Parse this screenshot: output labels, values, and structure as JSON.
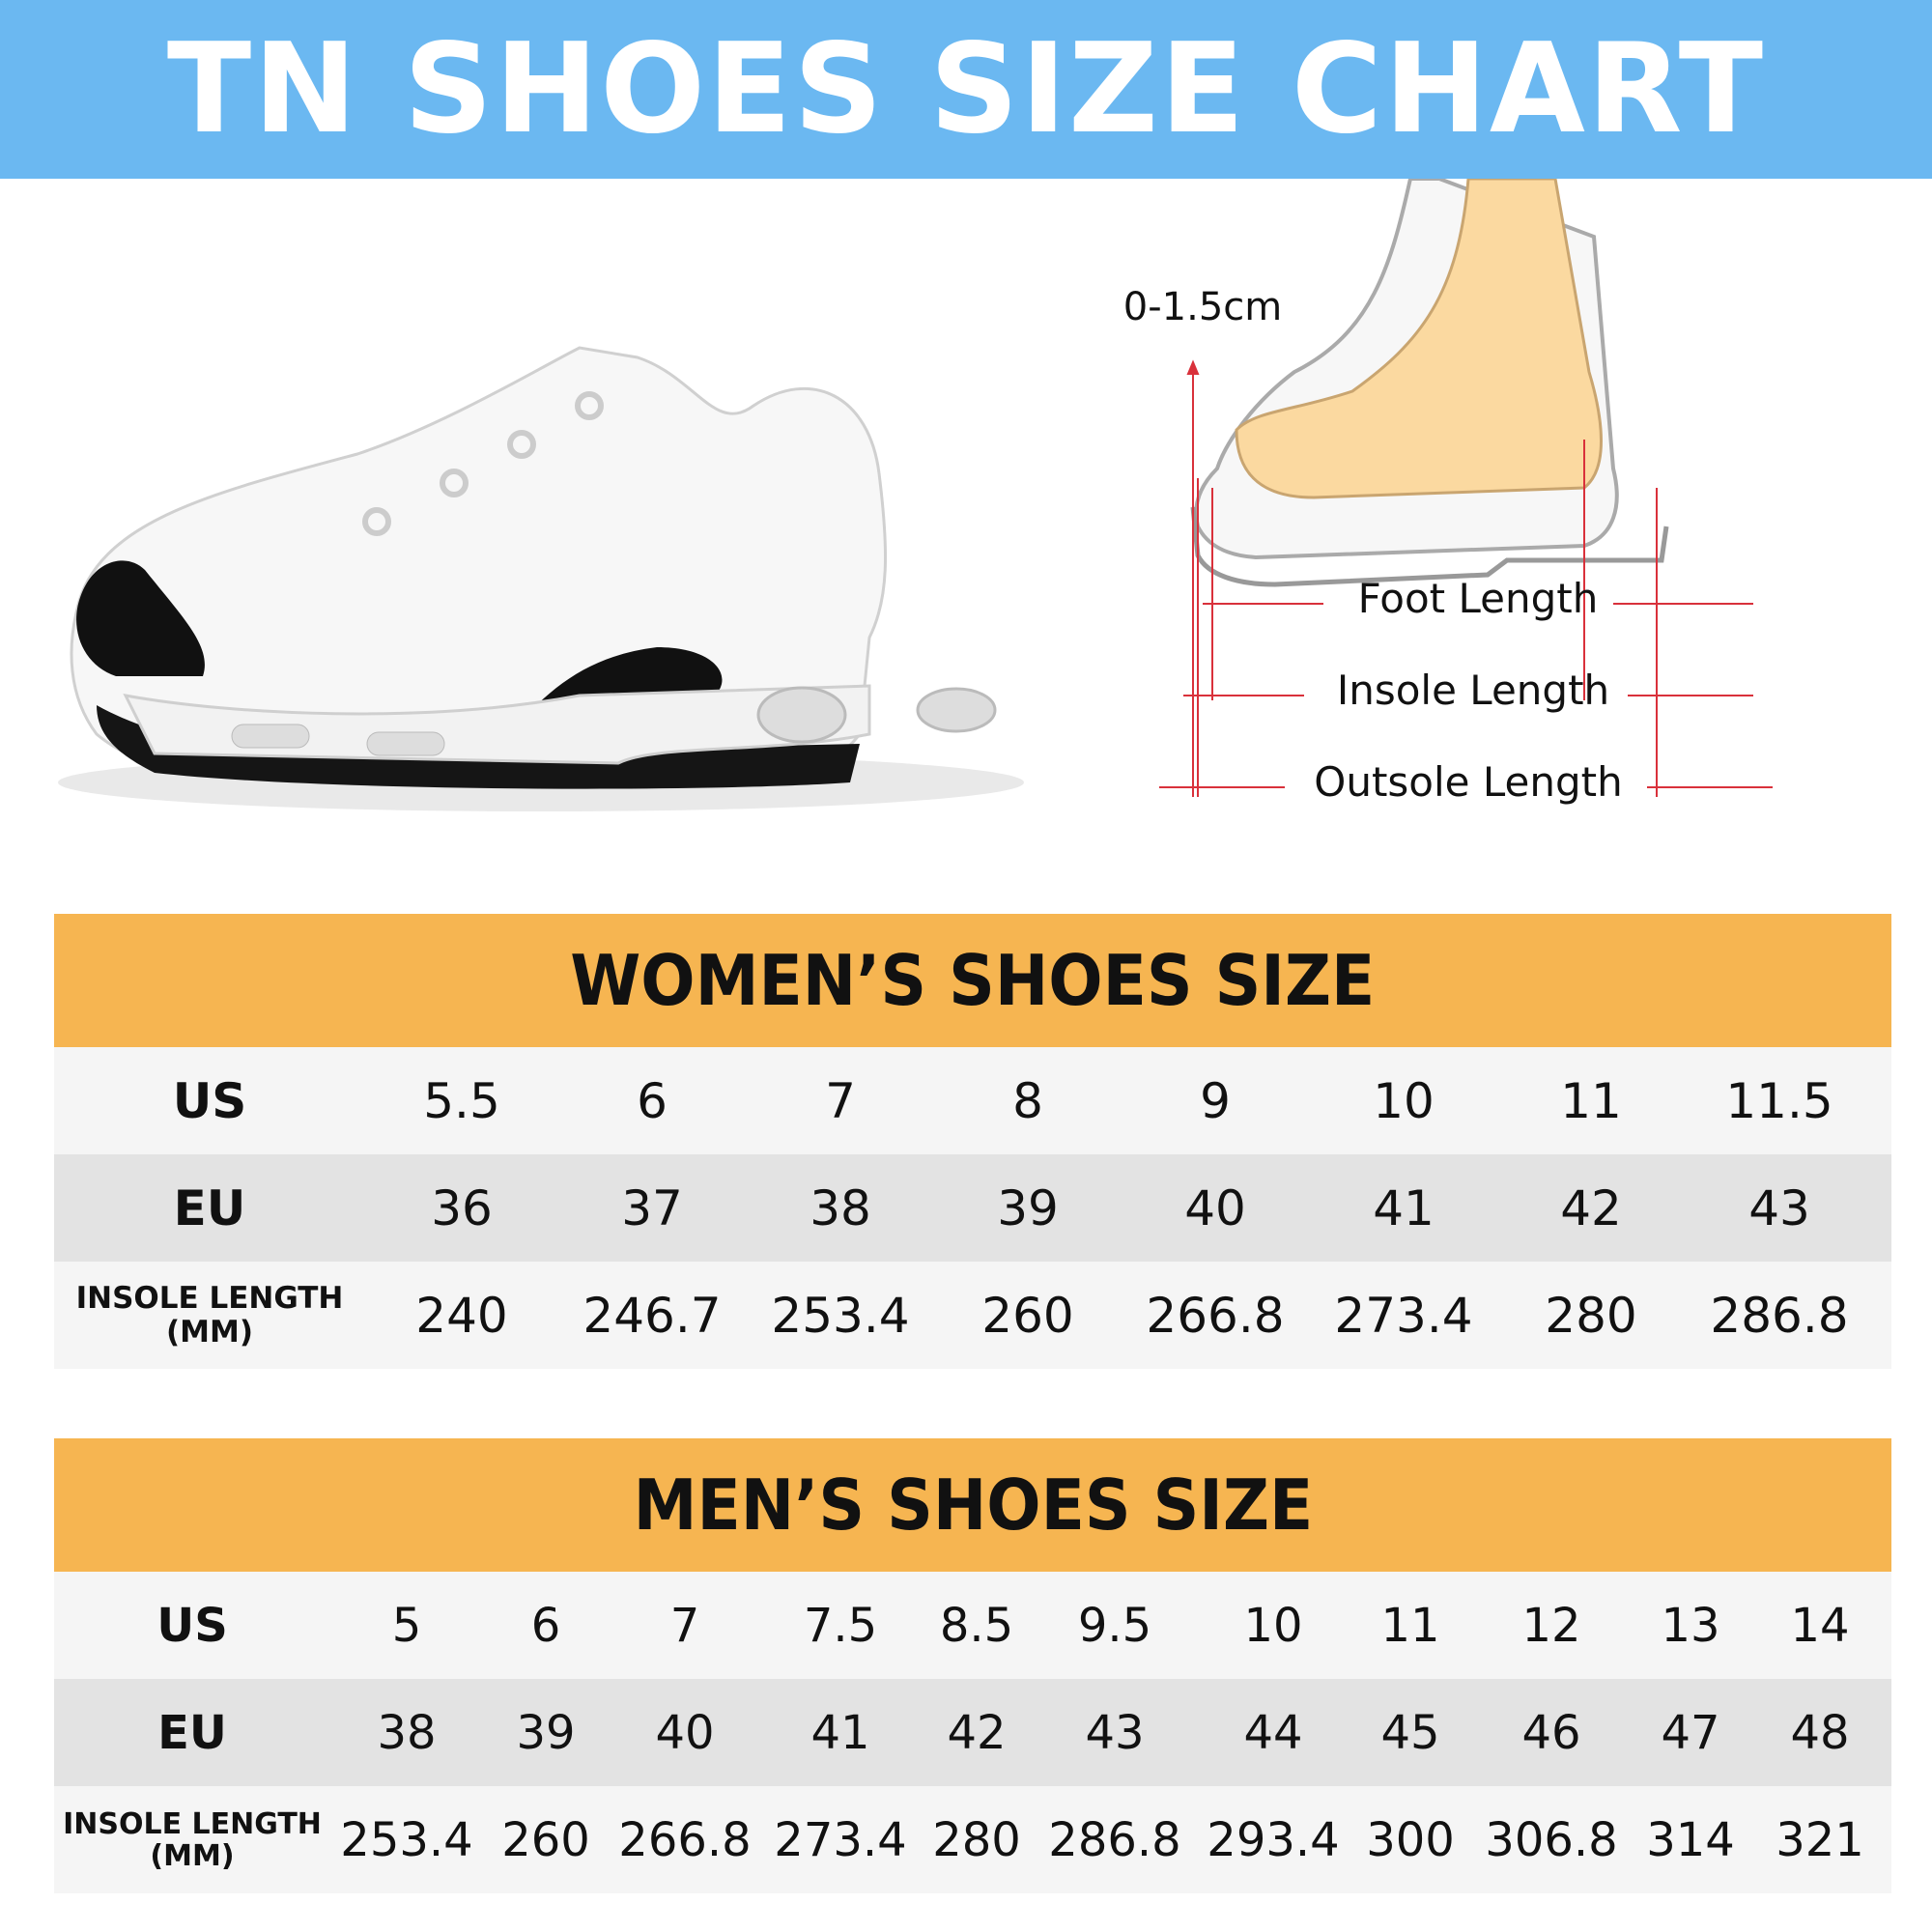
{
  "title": "TN SHOES SIZE CHART",
  "colors": {
    "banner": "#6bb8f1",
    "table_header": "#f6b551",
    "row_light": "#f5f5f5",
    "row_gray": "#e3e3e3",
    "measure_line": "#d9313b",
    "foot": "#fbd9a0"
  },
  "diagram": {
    "toe_gap": "0-1.5cm",
    "foot_length": "Foot Length",
    "insole_length": "Insole Length",
    "outsole_length": "Outsole Length"
  },
  "women": {
    "title": "WOMEN’S SHOES SIZE",
    "row_labels": {
      "us": "US",
      "eu": "EU",
      "insole_line1": "INSOLE LENGTH",
      "insole_line2": "(MM)"
    },
    "us": [
      "5.5",
      "6",
      "7",
      "8",
      "9",
      "10",
      "11",
      "11.5"
    ],
    "eu": [
      "36",
      "37",
      "38",
      "39",
      "40",
      "41",
      "42",
      "43"
    ],
    "insole": [
      "240",
      "246.7",
      "253.4",
      "260",
      "266.8",
      "273.4",
      "280",
      "286.8"
    ]
  },
  "men": {
    "title": "MEN’S SHOES SIZE",
    "row_labels": {
      "us": "US",
      "eu": "EU",
      "insole_line1": "INSOLE LENGTH",
      "insole_line2": "(MM)"
    },
    "us": [
      "5",
      "6",
      "7",
      "7.5",
      "8.5",
      "9.5",
      "10",
      "11",
      "12",
      "13",
      "14"
    ],
    "eu": [
      "38",
      "39",
      "40",
      "41",
      "42",
      "43",
      "44",
      "45",
      "46",
      "47",
      "48"
    ],
    "insole": [
      "253.4",
      "260",
      "266.8",
      "273.4",
      "280",
      "286.8",
      "293.4",
      "300",
      "306.8",
      "314",
      "321"
    ]
  }
}
